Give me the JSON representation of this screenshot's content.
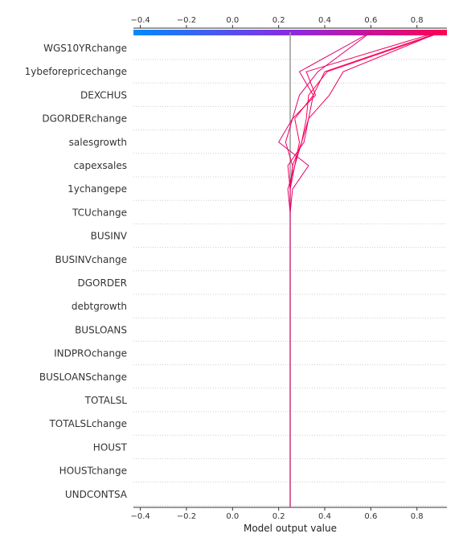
{
  "chart_data": {
    "type": "decision_plot",
    "xlabel": "Model output value",
    "xlim": [
      -0.43,
      0.93
    ],
    "ticks": [
      -0.4,
      -0.2,
      0.0,
      0.2,
      0.4,
      0.6,
      0.8
    ],
    "tick_labels": [
      "−0.4",
      "−0.2",
      "0.0",
      "0.2",
      "0.4",
      "0.6",
      "0.8"
    ],
    "base_value": 0.25,
    "features": [
      "WGS10YRchange",
      "1ybeforepricechange",
      "DEXCHUS",
      "DGORDERchange",
      "salesgrowth",
      "capexsales",
      "1ychangepe",
      "TCUchange",
      "BUSINV",
      "BUSINVchange",
      "DGORDER",
      "debtgrowth",
      "BUSLOANS",
      "INDPROchange",
      "BUSLOANSchange",
      "TOTALSL",
      "TOTALSLchange",
      "HOUST",
      "HOUSTchange",
      "UNDCONTSA"
    ],
    "colormap": [
      "#008bfb",
      "#ff0052"
    ],
    "grid": "dotted horizontal lines at each feature",
    "series": [
      {
        "color": "#ff0052",
        "points": [
          0.25,
          0.25,
          0.25,
          0.25,
          0.25,
          0.25,
          0.25,
          0.25,
          0.25,
          0.25,
          0.25,
          0.25,
          0.25,
          0.25,
          0.25,
          0.26,
          0.3,
          0.32,
          0.33,
          0.41,
          0.91
        ]
      },
      {
        "color": "#fb0056",
        "points": [
          0.25,
          0.25,
          0.25,
          0.25,
          0.25,
          0.25,
          0.25,
          0.25,
          0.25,
          0.25,
          0.25,
          0.25,
          0.25,
          0.25,
          0.25,
          0.27,
          0.29,
          0.27,
          0.35,
          0.4,
          0.9
        ]
      },
      {
        "color": "#f4005e",
        "points": [
          0.25,
          0.25,
          0.25,
          0.25,
          0.25,
          0.25,
          0.25,
          0.25,
          0.25,
          0.25,
          0.25,
          0.25,
          0.25,
          0.25,
          0.25,
          0.26,
          0.23,
          0.26,
          0.36,
          0.32,
          0.89
        ]
      },
      {
        "color": "#f00062",
        "points": [
          0.25,
          0.25,
          0.25,
          0.25,
          0.25,
          0.25,
          0.25,
          0.25,
          0.25,
          0.25,
          0.25,
          0.25,
          0.25,
          0.25,
          0.25,
          0.24,
          0.31,
          0.33,
          0.42,
          0.48,
          0.9
        ]
      },
      {
        "color": "#e8006b",
        "points": [
          0.25,
          0.25,
          0.25,
          0.25,
          0.25,
          0.25,
          0.25,
          0.25,
          0.25,
          0.25,
          0.25,
          0.25,
          0.25,
          0.25,
          0.24,
          0.27,
          0.3,
          0.33,
          0.35,
          0.29,
          0.6
        ]
      },
      {
        "color": "#e3006f",
        "points": [
          0.25,
          0.25,
          0.25,
          0.25,
          0.25,
          0.25,
          0.25,
          0.25,
          0.25,
          0.25,
          0.25,
          0.25,
          0.25,
          0.25,
          0.26,
          0.33,
          0.2,
          0.26,
          0.29,
          0.37,
          0.6
        ]
      }
    ]
  }
}
